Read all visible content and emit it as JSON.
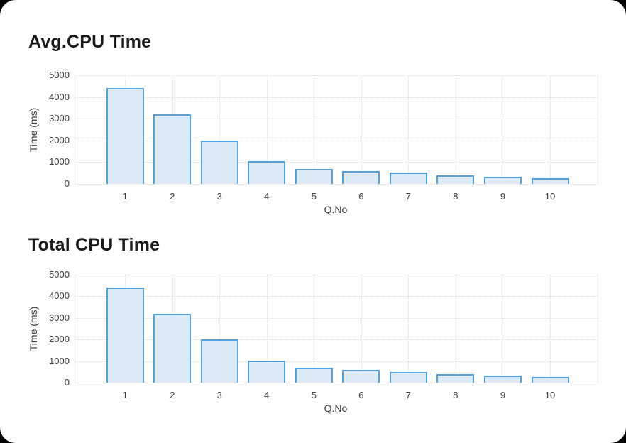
{
  "colors": {
    "page_background": "#000000",
    "card_background": "#ffffff",
    "bar_fill": "#dce9f7",
    "bar_stroke": "#58a1d8",
    "gridline": "#dddddd",
    "tick_text": "#3d3d3d",
    "title_text": "#1b1b1b"
  },
  "chart_data": [
    {
      "type": "bar",
      "title": "Avg.CPU Time",
      "xlabel": "Q.No",
      "ylabel": "Time (ms)",
      "categories": [
        "1",
        "2",
        "3",
        "4",
        "5",
        "6",
        "7",
        "8",
        "9",
        "10"
      ],
      "values": [
        4400,
        3200,
        2010,
        1030,
        700,
        580,
        510,
        380,
        330,
        270
      ],
      "ylim": [
        0,
        5000
      ],
      "yticks": [
        0,
        1000,
        2000,
        3000,
        4000,
        5000
      ],
      "grid": "on",
      "legend": "none"
    },
    {
      "type": "bar",
      "title": "Total CPU Time",
      "xlabel": "Q.No",
      "ylabel": "Time (ms)",
      "categories": [
        "1",
        "2",
        "3",
        "4",
        "5",
        "6",
        "7",
        "8",
        "9",
        "10"
      ],
      "values": [
        4400,
        3200,
        2010,
        1030,
        700,
        580,
        510,
        380,
        330,
        270
      ],
      "ylim": [
        0,
        5000
      ],
      "yticks": [
        0,
        1000,
        2000,
        3000,
        4000,
        5000
      ],
      "grid": "on",
      "legend": "none"
    }
  ]
}
